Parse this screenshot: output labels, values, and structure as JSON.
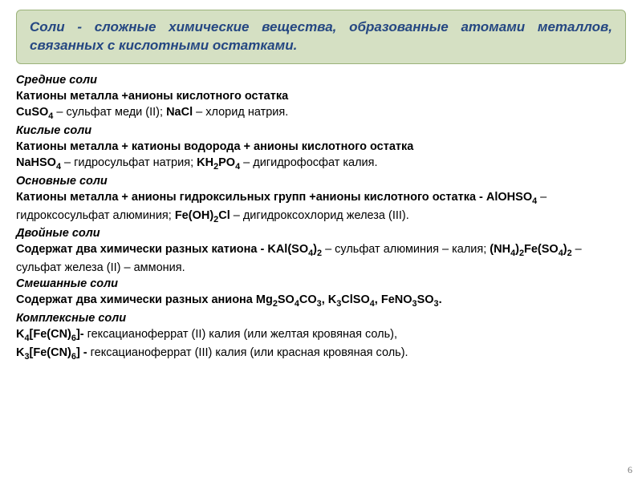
{
  "definition": "Соли - сложные химические вещества, образованные атомами металлов, связанных с кислотными остатками.",
  "cat1_title": "Средние соли",
  "cat1_rule": "Катионы металла +анионы  кислотного остатка",
  "cat1_ex_pre": "CuSO",
  "cat1_ex_sub": "4",
  "cat1_ex_post": " – сульфат меди (II); ",
  "cat1_ex2": "NaCl",
  "cat1_ex2_post": " – хлорид натрия.",
  "cat2_title": "Кислые соли",
  "cat2_rule": "Катионы металла + катионы водорода  + анионы  кислотного остатка",
  "cat2_ex1": "NaHSO",
  "cat2_ex1_sub": "4",
  "cat2_ex1_post": " – гидросульфат натрия; ",
  "cat2_ex2a": "KH",
  "cat2_ex2a_sub": "2",
  "cat2_ex2b": "PO",
  "cat2_ex2b_sub": "4",
  "cat2_ex2_post": " – дигидрофосфат калия.",
  "cat3_title": "Основные соли",
  "cat3_rule_pre": "Катионы металла + анионы гидроксильных групп +анионы   кислотного остатка ",
  "cat3_space": "     - ",
  "cat3_ex1": "AlOHSO",
  "cat3_ex1_sub": "4",
  "cat3_ex1_post": " – гидроксосульфат алюминия; ",
  "cat3_ex2a": "Fe(OH)",
  "cat3_ex2a_sub": "2",
  "cat3_ex2b": "Cl",
  "cat3_ex2_post": " – дигидроксохлорид железа (III).",
  "cat4_title": "Двойные соли",
  "cat4_rule": "Содержат два химически разных катиона    - ",
  "cat4_ex1a": "KAl(SO",
  "cat4_ex1a_sub": "4",
  "cat4_ex1b": ")",
  "cat4_ex1b_sub": "2",
  "cat4_ex1_post": " – сульфат алюминия – калия; ",
  "cat4_ex2a": "(NH",
  "cat4_ex2a_sub": "4",
  "cat4_ex2b": ")",
  "cat4_ex2b_sub": "2",
  "cat4_ex2c": "Fe(SO",
  "cat4_ex2c_sub": "4",
  "cat4_ex2d": ")",
  "cat4_ex2d_sub": "2",
  "cat4_ex2_post": " – сульфат железа (II) – аммония.",
  "cat5_title": "Смешанные соли",
  "cat5_rule": "Содержат два химически разных аниона   ",
  "cat5_ex1a": "Mg",
  "cat5_ex1a_sub": "2",
  "cat5_ex1b": "SO",
  "cat5_ex1b_sub": "4",
  "cat5_ex1c": "CO",
  "cat5_ex1c_sub": "3",
  "cat5_sep1": ", ",
  "cat5_ex2a": "K",
  "cat5_ex2a_sub": "3",
  "cat5_ex2b": "ClSO",
  "cat5_ex2b_sub": "4",
  "cat5_sep2": ", ",
  "cat5_ex3a": "FeNO",
  "cat5_ex3a_sub": "3",
  "cat5_ex3b": "SO",
  "cat5_ex3b_sub": "3",
  "cat5_end": ".",
  "cat6_title": "Комплексные соли",
  "cat6_ex1a": "K",
  "cat6_ex1a_sub": "4",
  "cat6_ex1b": "[Fe(CN)",
  "cat6_ex1b_sub": "6",
  "cat6_ex1c": "]- ",
  "cat6_ex1_post": "гексацианоферрат (II) калия (или желтая кровяная соль),",
  "cat6_ex2a": "K",
  "cat6_ex2a_sub": "3",
  "cat6_ex2b": "[Fe(CN)",
  "cat6_ex2b_sub": "6",
  "cat6_ex2c": "] - ",
  "cat6_ex2_post": "гексацианоферрат (III) калия (или красная кровяная соль).",
  "slide_num": "6"
}
